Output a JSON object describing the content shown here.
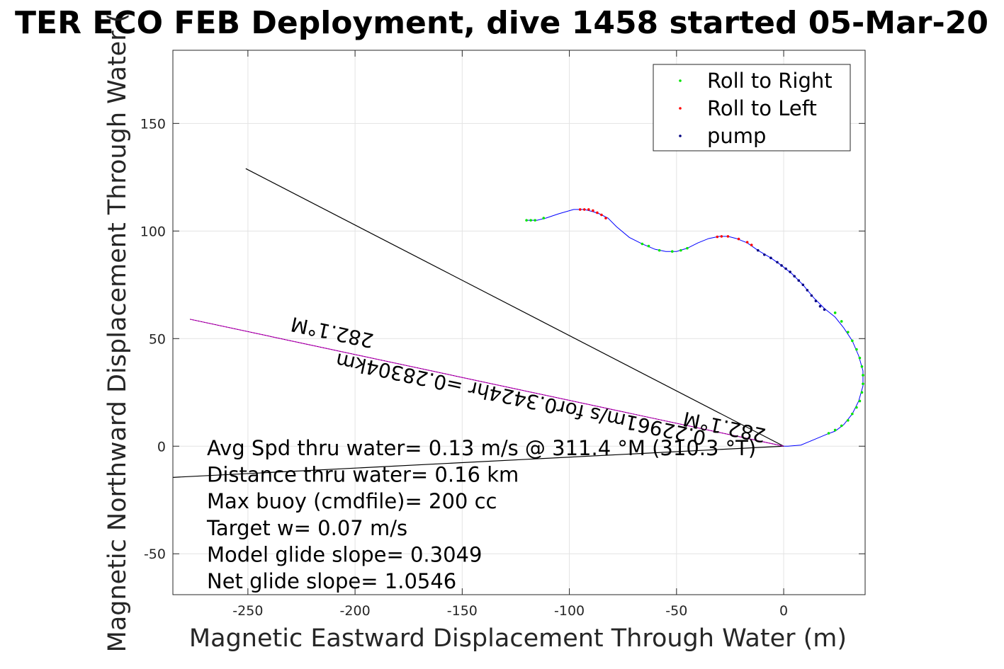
{
  "chart_data": {
    "type": "line",
    "title": "TER ECO FEB Deployment, dive 1458 started 05-Mar-20",
    "xlabel": "Magnetic Eastward Displacement Through Water (m)",
    "ylabel": "Magnetic Northward Displacement Through Water (",
    "xlim": [
      -285,
      38
    ],
    "ylim": [
      -69,
      184
    ],
    "xticks": [
      -250,
      -200,
      -150,
      -100,
      -50,
      0
    ],
    "yticks": [
      -50,
      0,
      50,
      100,
      150
    ],
    "grid": true,
    "legend_position": "top-right",
    "legend": [
      {
        "label": "Roll to Right",
        "color": "#00e600"
      },
      {
        "label": "Roll to Left",
        "color": "#ff0000"
      },
      {
        "label": "pump",
        "color": "#000080"
      }
    ],
    "track": {
      "name": "glider track",
      "color": "#0000ff",
      "points": [
        [
          -120,
          105
        ],
        [
          -115,
          105
        ],
        [
          -111,
          106
        ],
        [
          -105,
          108
        ],
        [
          -98,
          110
        ],
        [
          -93,
          110
        ],
        [
          -89,
          109
        ],
        [
          -86,
          108
        ],
        [
          -82,
          106
        ],
        [
          -78,
          102
        ],
        [
          -72,
          97
        ],
        [
          -66,
          94
        ],
        [
          -60,
          91.5
        ],
        [
          -55,
          90.5
        ],
        [
          -50,
          90.5
        ],
        [
          -45,
          92
        ],
        [
          -40,
          94.5
        ],
        [
          -35,
          96.5
        ],
        [
          -30,
          97.5
        ],
        [
          -26,
          97.5
        ],
        [
          -22,
          96.5
        ],
        [
          -17,
          94.5
        ],
        [
          -12,
          91
        ],
        [
          -6,
          87.5
        ],
        [
          -1,
          84
        ],
        [
          4,
          80
        ],
        [
          9,
          75
        ],
        [
          14,
          69
        ],
        [
          19,
          64
        ],
        [
          24,
          60
        ],
        [
          28,
          55
        ],
        [
          32,
          49
        ],
        [
          35,
          42
        ],
        [
          37,
          35
        ],
        [
          37,
          28
        ],
        [
          35,
          21
        ],
        [
          32,
          15
        ],
        [
          28,
          10
        ],
        [
          24,
          7
        ],
        [
          20,
          5.5
        ],
        [
          14,
          3
        ],
        [
          8,
          0.5
        ],
        [
          2,
          0
        ],
        [
          0,
          0
        ]
      ],
      "roll_right_points": [
        [
          -120,
          105
        ],
        [
          -118,
          105
        ],
        [
          -116,
          105
        ],
        [
          -112,
          106
        ],
        [
          -66,
          94
        ],
        [
          -63,
          93
        ],
        [
          -58,
          91
        ],
        [
          -52,
          90.5
        ],
        [
          -48,
          91
        ],
        [
          -45,
          92
        ],
        [
          24,
          62
        ],
        [
          27,
          58
        ],
        [
          30,
          53
        ],
        [
          32,
          49
        ],
        [
          34,
          45
        ],
        [
          35.5,
          41
        ],
        [
          36.5,
          37
        ],
        [
          37,
          33
        ],
        [
          37,
          29
        ],
        [
          36.5,
          25
        ],
        [
          35.5,
          21
        ],
        [
          34,
          18
        ],
        [
          32,
          15
        ],
        [
          30,
          12
        ],
        [
          27,
          9.5
        ],
        [
          24,
          7.5
        ],
        [
          21,
          6
        ]
      ],
      "roll_left_points": [
        [
          -95,
          110
        ],
        [
          -93,
          110
        ],
        [
          -91,
          110
        ],
        [
          -89,
          109.5
        ],
        [
          -87,
          108.5
        ],
        [
          -85,
          107.5
        ],
        [
          -83,
          106
        ],
        [
          -31,
          97.3
        ],
        [
          -29,
          97.5
        ],
        [
          -26,
          97.5
        ],
        [
          -21,
          96.3
        ],
        [
          -17,
          94.8
        ],
        [
          -15,
          93.5
        ]
      ],
      "pump_points": [
        [
          -12,
          91
        ],
        [
          -9,
          89
        ],
        [
          -6,
          87.5
        ],
        [
          -3,
          85.5
        ],
        [
          -1,
          84
        ],
        [
          1,
          82.5
        ],
        [
          3,
          81
        ],
        [
          5,
          79
        ],
        [
          7,
          77
        ],
        [
          9,
          75
        ],
        [
          11,
          72.5
        ],
        [
          13,
          70
        ],
        [
          15,
          67.5
        ],
        [
          17,
          65
        ],
        [
          19,
          63.5
        ]
      ]
    },
    "reference_lines": [
      {
        "name": "current-heading-line",
        "color": "#000000",
        "points": [
          [
            -251,
            129
          ],
          [
            0,
            0
          ]
        ]
      },
      {
        "name": "lower-bearing-line",
        "color": "#000000",
        "points": [
          [
            -285,
            -14.5
          ],
          [
            0,
            0
          ]
        ]
      },
      {
        "name": "depth-averaged-current-line",
        "color": "#c000c0",
        "points": [
          [
            -277,
            59
          ],
          [
            0,
            0
          ]
        ]
      }
    ],
    "annotations": [
      {
        "text": "282.1°M",
        "x": -210,
        "y": 56,
        "rotate": 192
      },
      {
        "text": "0.22961m/s for0.3424hr =0.28304km",
        "x": -122,
        "y": 25,
        "rotate": 192
      },
      {
        "text": "282.1°M",
        "x": -27,
        "y": 12,
        "rotate": 192
      }
    ],
    "info_lines": [
      "Avg Spd thru water=  0.13 m/s @ 311.4 °M (310.3 °T)",
      "Distance thru water=  0.16 km",
      "Max buoy (cmdfile)= 200 cc",
      "Target w= 0.07 m/s",
      "Model glide slope= 0.3049",
      "Net glide slope= 1.0546"
    ]
  }
}
